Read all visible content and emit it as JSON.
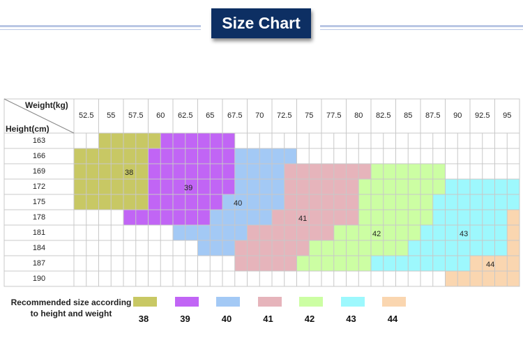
{
  "title": "Size Chart",
  "axis": {
    "weight_label": "Weight(kg)",
    "height_label": "Height(cm)"
  },
  "weights": [
    "52.5",
    "55",
    "57.5",
    "60",
    "62.5",
    "65",
    "67.5",
    "70",
    "72.5",
    "75",
    "77.5",
    "80",
    "82.5",
    "85",
    "87.5",
    "90",
    "92.5",
    "95"
  ],
  "heights": [
    "163",
    "166",
    "169",
    "172",
    "175",
    "178",
    "181",
    "184",
    "187",
    "190"
  ],
  "colors": {
    "38": "#c8c864",
    "39": "#c165f5",
    "40": "#a3c9f5",
    "41": "#e6b4bb",
    "42": "#ccfea3",
    "43": "#9df8fd",
    "44": "#fad6b0",
    "grid": "#c8c8c8"
  },
  "size_labels": [
    "38",
    "39",
    "40",
    "41",
    "42",
    "43",
    "44"
  ],
  "legend": {
    "line1": "Recommended size according",
    "line2": "to height and weight",
    "items": [
      "38",
      "39",
      "40",
      "41",
      "42",
      "43",
      "44"
    ]
  }
}
